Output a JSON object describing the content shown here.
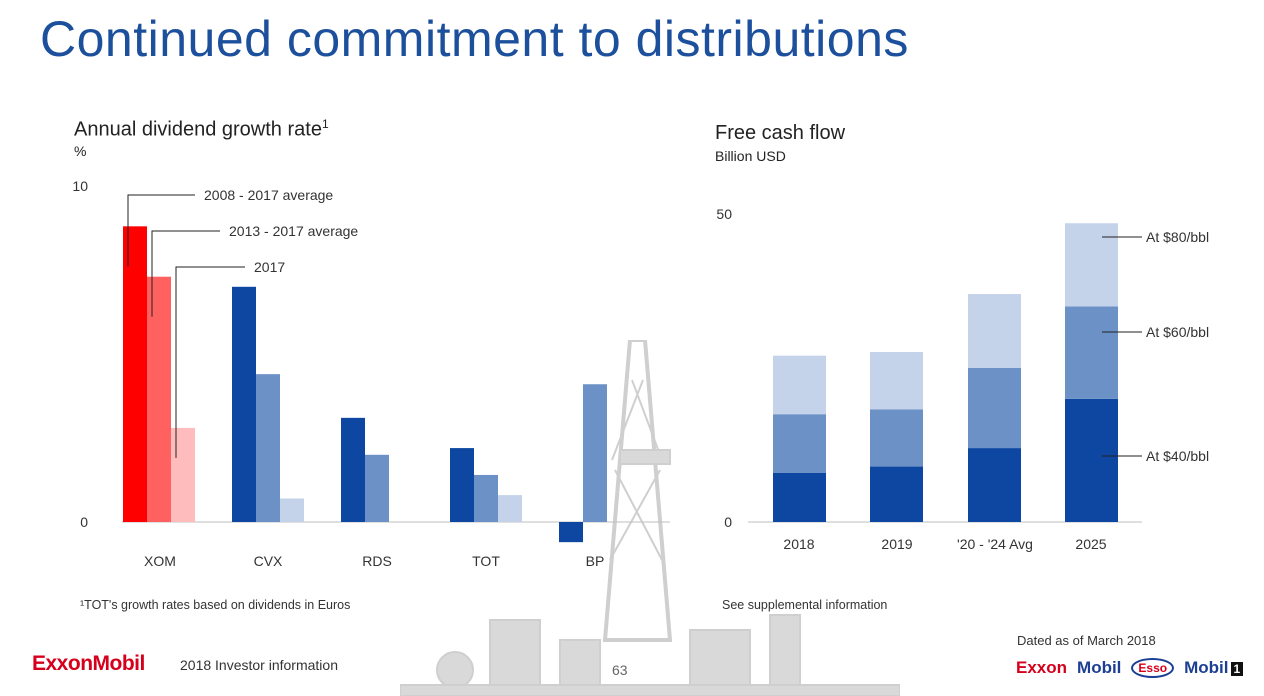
{
  "page": {
    "title": "Continued commitment to distributions"
  },
  "chart_data": [
    {
      "type": "bar",
      "title": "Annual dividend growth rate",
      "title_superscript": "1",
      "ylabel": "%",
      "categories": [
        "XOM",
        "CVX",
        "RDS",
        "TOT",
        "BP"
      ],
      "series": [
        {
          "name": "2008 - 2017 average",
          "values": [
            8.8,
            7.0,
            3.1,
            2.2,
            -0.6
          ]
        },
        {
          "name": "2013 - 2017 average",
          "values": [
            7.3,
            4.4,
            2.0,
            1.4,
            4.1
          ]
        },
        {
          "name": "2017",
          "values": [
            2.8,
            0.7,
            0,
            0.8,
            0
          ]
        }
      ],
      "yticks": [
        "0",
        "10"
      ],
      "ylim": [
        -0.6,
        10
      ],
      "colors": {
        "XOM": [
          "#ff0000",
          "#ff6060",
          "#ffbcbc"
        ],
        "other": [
          "#0d47a1",
          "#6b91c6",
          "#c4d3ea"
        ]
      },
      "legend_placement": "annotations-over-first-group",
      "footnote": "¹TOT's growth rates based on dividends in Euros"
    },
    {
      "type": "bar",
      "stacked": true,
      "title": "Free cash flow",
      "ylabel": "Billion USD",
      "categories": [
        "2018",
        "2019",
        "'20 - '24 Avg",
        "2025"
      ],
      "series": [
        {
          "name": "At $40/bbl",
          "values": [
            8,
            9,
            12,
            20
          ]
        },
        {
          "name": "At $60/bbl",
          "values": [
            9.5,
            9.3,
            13,
            15
          ]
        },
        {
          "name": "At $80/bbl",
          "values": [
            9.5,
            9.3,
            12,
            13.5
          ]
        }
      ],
      "yticks": [
        "0",
        "50"
      ],
      "ylim": [
        0,
        50
      ],
      "colors": [
        "#0d47a1",
        "#6b91c6",
        "#c4d3ea"
      ],
      "legend_placement": "right",
      "footnote": "See supplemental information"
    }
  ],
  "footer": {
    "logo": "ExxonMobil",
    "text": "2018 Investor information",
    "page_number": "63",
    "dated": "Dated as of March 2018",
    "brands": [
      "Exxon",
      "Mobil",
      "Esso",
      "Mobil",
      "1"
    ]
  }
}
